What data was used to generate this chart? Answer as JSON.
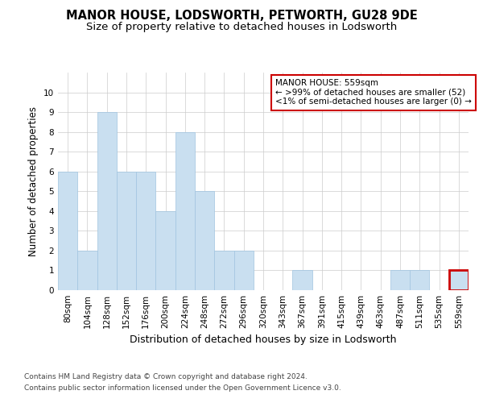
{
  "title": "MANOR HOUSE, LODSWORTH, PETWORTH, GU28 9DE",
  "subtitle": "Size of property relative to detached houses in Lodsworth",
  "xlabel": "Distribution of detached houses by size in Lodsworth",
  "ylabel": "Number of detached properties",
  "categories": [
    "80sqm",
    "104sqm",
    "128sqm",
    "152sqm",
    "176sqm",
    "200sqm",
    "224sqm",
    "248sqm",
    "272sqm",
    "296sqm",
    "320sqm",
    "343sqm",
    "367sqm",
    "391sqm",
    "415sqm",
    "439sqm",
    "463sqm",
    "487sqm",
    "511sqm",
    "535sqm",
    "559sqm"
  ],
  "values": [
    6,
    2,
    9,
    6,
    6,
    4,
    8,
    5,
    2,
    2,
    0,
    0,
    1,
    0,
    0,
    0,
    0,
    1,
    1,
    0,
    1
  ],
  "bar_color": "#c9dff0",
  "bar_edgecolor": "#a0c4e0",
  "highlight_index": 20,
  "highlight_bar_edgecolor": "#cc0000",
  "annotation_text": "MANOR HOUSE: 559sqm\n← >99% of detached houses are smaller (52)\n<1% of semi-detached houses are larger (0) →",
  "annotation_box_edgecolor": "#cc0000",
  "ylim": [
    0,
    11
  ],
  "yticks": [
    0,
    1,
    2,
    3,
    4,
    5,
    6,
    7,
    8,
    9,
    10
  ],
  "grid_color": "#cccccc",
  "background_color": "#ffffff",
  "title_fontsize": 10.5,
  "subtitle_fontsize": 9.5,
  "xlabel_fontsize": 9,
  "ylabel_fontsize": 8.5,
  "tick_fontsize": 7.5,
  "annotation_fontsize": 7.5,
  "footer_line1": "Contains HM Land Registry data © Crown copyright and database right 2024.",
  "footer_line2": "Contains public sector information licensed under the Open Government Licence v3.0."
}
